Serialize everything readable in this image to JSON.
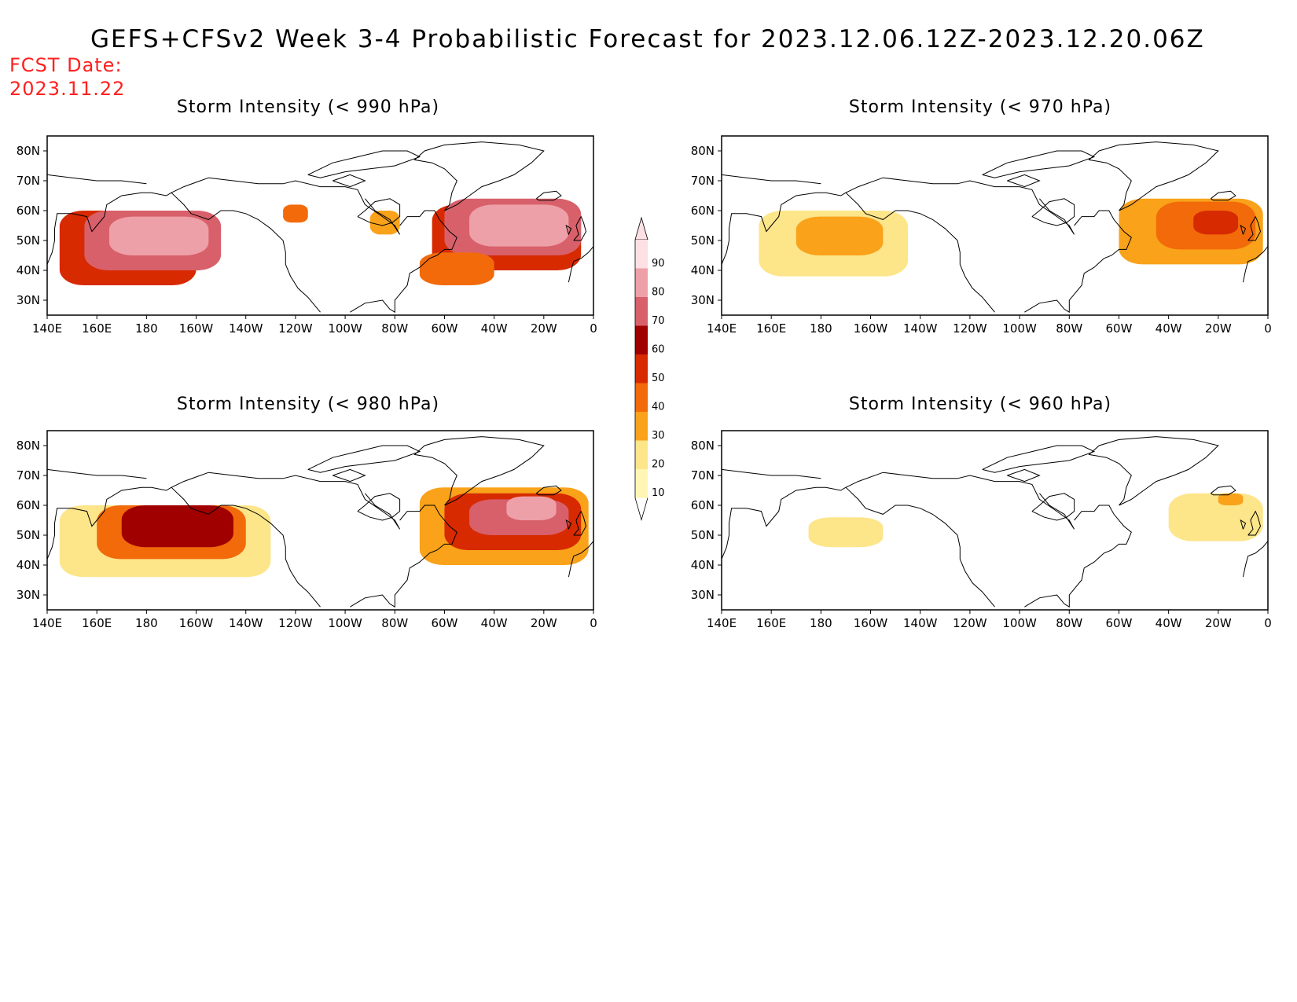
{
  "header": {
    "title": "GEFS+CFSv2 Week 3-4 Probabilistic Forecast for 2023.12.06.12Z-2023.12.20.06Z",
    "fcst_label": "FCST Date:",
    "fcst_date": "2023.11.22"
  },
  "lat_ticks": [
    "80N",
    "70N",
    "60N",
    "50N",
    "40N",
    "30N"
  ],
  "lon_ticks": [
    "140E",
    "160E",
    "180",
    "160W",
    "140W",
    "120W",
    "100W",
    "80W",
    "60W",
    "40W",
    "20W",
    "0"
  ],
  "colorbar": {
    "labels": [
      "10",
      "20",
      "30",
      "40",
      "50",
      "60",
      "70",
      "80",
      "90"
    ],
    "colors": [
      "#ffffff",
      "#fff5b4",
      "#fde58a",
      "#f9a21a",
      "#f26a0a",
      "#d72a00",
      "#a00000",
      "#d8606a",
      "#eda0a8",
      "#fde0e4"
    ]
  },
  "panels": [
    {
      "title": "Storm Intensity (< 990 hPa)",
      "regions": [
        {
          "lon": [
            145,
            200
          ],
          "lat": [
            35,
            60
          ],
          "level": 5
        },
        {
          "lon": [
            155,
            210
          ],
          "lat": [
            40,
            60
          ],
          "level": 7
        },
        {
          "lon": [
            165,
            205
          ],
          "lat": [
            45,
            58
          ],
          "level": 8
        },
        {
          "lon": [
            235,
            245
          ],
          "lat": [
            56,
            62
          ],
          "level": 4
        },
        {
          "lon": [
            270,
            282
          ],
          "lat": [
            52,
            60
          ],
          "level": 3
        },
        {
          "lon": [
            295,
            355
          ],
          "lat": [
            40,
            62
          ],
          "level": 5
        },
        {
          "lon": [
            300,
            355
          ],
          "lat": [
            45,
            64
          ],
          "level": 7
        },
        {
          "lon": [
            310,
            350
          ],
          "lat": [
            48,
            62
          ],
          "level": 8
        },
        {
          "lon": [
            290,
            320
          ],
          "lat": [
            35,
            46
          ],
          "level": 4
        }
      ]
    },
    {
      "title": "Storm Intensity (< 970 hPa)",
      "regions": [
        {
          "lon": [
            155,
            215
          ],
          "lat": [
            38,
            60
          ],
          "level": 2
        },
        {
          "lon": [
            170,
            205
          ],
          "lat": [
            45,
            58
          ],
          "level": 3
        },
        {
          "lon": [
            300,
            358
          ],
          "lat": [
            42,
            64
          ],
          "level": 3
        },
        {
          "lon": [
            315,
            355
          ],
          "lat": [
            47,
            63
          ],
          "level": 4
        },
        {
          "lon": [
            330,
            348
          ],
          "lat": [
            52,
            60
          ],
          "level": 5
        }
      ]
    },
    {
      "title": "Storm Intensity (< 980 hPa)",
      "regions": [
        {
          "lon": [
            145,
            230
          ],
          "lat": [
            36,
            60
          ],
          "level": 2
        },
        {
          "lon": [
            160,
            220
          ],
          "lat": [
            42,
            60
          ],
          "level": 4
        },
        {
          "lon": [
            170,
            215
          ],
          "lat": [
            46,
            60
          ],
          "level": 6
        },
        {
          "lon": [
            290,
            358
          ],
          "lat": [
            40,
            66
          ],
          "level": 3
        },
        {
          "lon": [
            300,
            355
          ],
          "lat": [
            45,
            64
          ],
          "level": 5
        },
        {
          "lon": [
            310,
            350
          ],
          "lat": [
            50,
            62
          ],
          "level": 7
        },
        {
          "lon": [
            325,
            345
          ],
          "lat": [
            55,
            63
          ],
          "level": 8
        }
      ]
    },
    {
      "title": "Storm Intensity (< 960 hPa)",
      "regions": [
        {
          "lon": [
            175,
            205
          ],
          "lat": [
            46,
            56
          ],
          "level": 2
        },
        {
          "lon": [
            320,
            358
          ],
          "lat": [
            48,
            64
          ],
          "level": 2
        },
        {
          "lon": [
            340,
            350
          ],
          "lat": [
            60,
            64
          ],
          "level": 3
        }
      ]
    }
  ]
}
